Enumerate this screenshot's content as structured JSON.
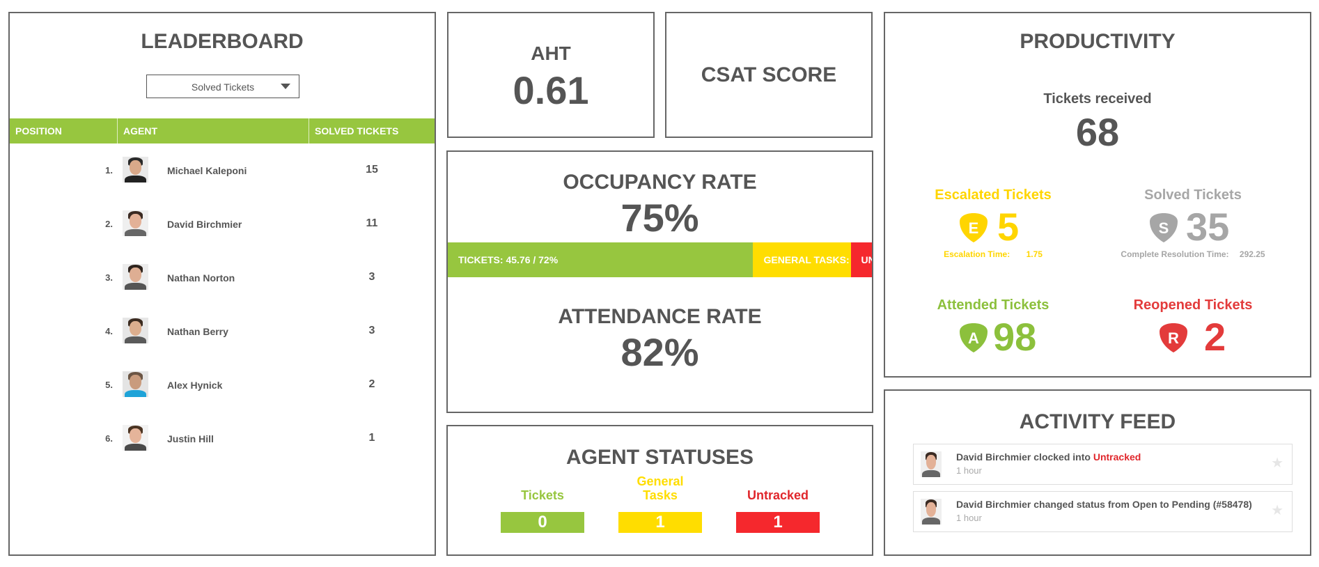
{
  "colors": {
    "green": "#97c63f",
    "yellow": "#ffdd00",
    "red": "#f5282d",
    "gray_text": "#555555",
    "solved_gray": "#a6a6a6",
    "reopened_red": "#e33b3b",
    "escalated_yellow": "#ffd500",
    "attended_green": "#8cc03c"
  },
  "leaderboard": {
    "title": "LEADERBOARD",
    "dropdown": {
      "selected": "Solved Tickets",
      "icon": "chevron-down-icon"
    },
    "columns": [
      "POSITION",
      "AGENT",
      "SOLVED TICKETS"
    ],
    "rows": [
      {
        "position": "1.",
        "name": "Michael Kaleponi",
        "value": "15"
      },
      {
        "position": "2.",
        "name": "David Birchmier",
        "value": "11"
      },
      {
        "position": "3.",
        "name": "Nathan Norton",
        "value": "3"
      },
      {
        "position": "4.",
        "name": "Nathan Berry",
        "value": "3"
      },
      {
        "position": "5.",
        "name": "Alex Hynick",
        "value": "2"
      },
      {
        "position": "6.",
        "name": "Justin Hill",
        "value": "1"
      }
    ]
  },
  "aht": {
    "label": "AHT",
    "value": "0.61"
  },
  "csat": {
    "label": "CSAT SCORE"
  },
  "occupancy": {
    "title": "OCCUPANCY RATE",
    "value": "75%",
    "bar": [
      {
        "label": "TICKETS: 45.76 / 72%",
        "percent": 72
      },
      {
        "label": "GENERAL TASKS:",
        "percent": 23
      },
      {
        "label": "UN",
        "percent": 5
      }
    ]
  },
  "attendance": {
    "title": "ATTENDANCE RATE",
    "value": "82%"
  },
  "agent_statuses": {
    "title": "AGENT STATUSES",
    "items": [
      {
        "label": "Tickets",
        "value": "0"
      },
      {
        "label": "General Tasks",
        "value": "1"
      },
      {
        "label": "Untracked",
        "value": "1"
      }
    ]
  },
  "productivity": {
    "title": "PRODUCTIVITY",
    "received_label": "Tickets received",
    "received_value": "68",
    "escalated": {
      "label": "Escalated Tickets",
      "badge": "E",
      "value": "5",
      "sub_label": "Escalation Time:",
      "sub_value": "1.75"
    },
    "solved": {
      "label": "Solved Tickets",
      "badge": "S",
      "value": "35",
      "sub_label": "Complete Resolution Time:",
      "sub_value": "292.25"
    },
    "attended": {
      "label": "Attended Tickets",
      "badge": "A",
      "value": "98"
    },
    "reopened": {
      "label": "Reopened Tickets",
      "badge": "R",
      "value": "2"
    }
  },
  "activity_feed": {
    "title": "ACTIVITY FEED",
    "items": [
      {
        "text": "David Birchmier clocked into ",
        "highlight": "Untracked",
        "time": "1 hour"
      },
      {
        "text": "David Birchmier changed status from Open to Pending (#58478)",
        "highlight": "",
        "time": "1 hour"
      }
    ]
  }
}
